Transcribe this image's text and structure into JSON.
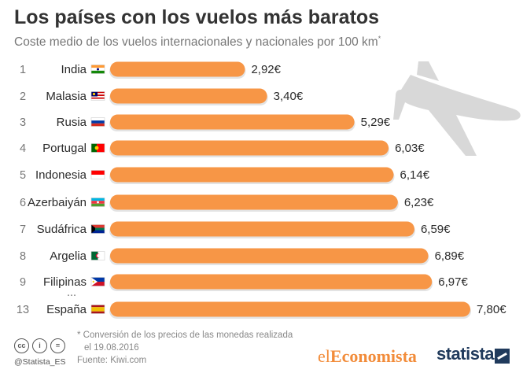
{
  "title": "Los países con los vuelos más baratos",
  "subtitle": "Coste medio de los vuelos internacionales y nacionales por 100 km",
  "subtitle_mark": "*",
  "gap_marker": "...",
  "colors": {
    "bar": "#f79646",
    "bar_shadow": "#e3e3e3",
    "plane": "#d8d8d8"
  },
  "chart_data": {
    "type": "bar",
    "orientation": "horizontal",
    "title": "Los países con los vuelos más baratos",
    "subtitle": "Coste medio de los vuelos internacionales y nacionales por 100 km*",
    "ranks": [
      "1",
      "2",
      "3",
      "4",
      "5",
      "6",
      "7",
      "8",
      "9",
      "13"
    ],
    "categories": [
      "India",
      "Malasia",
      "Rusia",
      "Portugal",
      "Indonesia",
      "Azerbaiyán",
      "Sudáfrica",
      "Argelia",
      "Filipinas",
      "España"
    ],
    "flags": [
      "india-flag-icon",
      "malaysia-flag-icon",
      "russia-flag-icon",
      "portugal-flag-icon",
      "indonesia-flag-icon",
      "azerbaijan-flag-icon",
      "south-africa-flag-icon",
      "algeria-flag-icon",
      "philippines-flag-icon",
      "spain-flag-icon"
    ],
    "values": [
      2.92,
      3.4,
      5.29,
      6.03,
      6.14,
      6.23,
      6.59,
      6.89,
      6.97,
      7.8
    ],
    "value_labels": [
      "2,92€",
      "3,40€",
      "5,29€",
      "6,03€",
      "6,14€",
      "6,23€",
      "6,59€",
      "6,89€",
      "6,97€",
      "7,80€"
    ],
    "unit": "€",
    "xlim": [
      0,
      7.8
    ],
    "grid": false,
    "legend": "none"
  },
  "footnote": {
    "line1": "* Conversión de los precios de las monedas realizada",
    "line2": "el 19.08.2016"
  },
  "source": "Fuente: Kiwi.com",
  "license": {
    "cc": "cc",
    "by": "i",
    "nd": "="
  },
  "handle": "@Statista_ES",
  "logo_el": "el",
  "logo_economista": "Economista",
  "logo_statista": "statista",
  "decor_icon": "airplane-icon"
}
